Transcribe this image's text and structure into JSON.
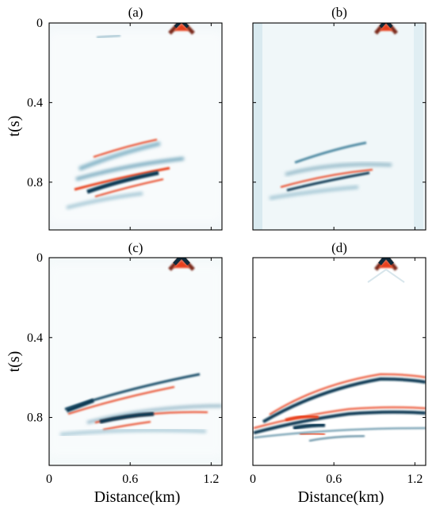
{
  "figure": {
    "panels": [
      {
        "id": "a",
        "label": "(a)"
      },
      {
        "id": "b",
        "label": "(b)"
      },
      {
        "id": "c",
        "label": "(c)"
      },
      {
        "id": "d",
        "label": "(d)"
      }
    ],
    "y_axis": {
      "label": "t(s)",
      "ticks": [
        "0",
        "0.4",
        "0.8"
      ],
      "tick_values": [
        0,
        0.4,
        0.8
      ],
      "range": [
        0,
        1.04
      ]
    },
    "x_axis": {
      "label": "Distance(km)",
      "ticks": [
        "0",
        "0.6",
        "1.2"
      ],
      "tick_values": [
        0,
        0.6,
        1.2
      ],
      "range": [
        0,
        1.28
      ]
    },
    "colors": {
      "positive": "#e8401c",
      "negative": "#0f3a55",
      "background": "#ffffff",
      "tint": "#e6f1f5"
    }
  }
}
